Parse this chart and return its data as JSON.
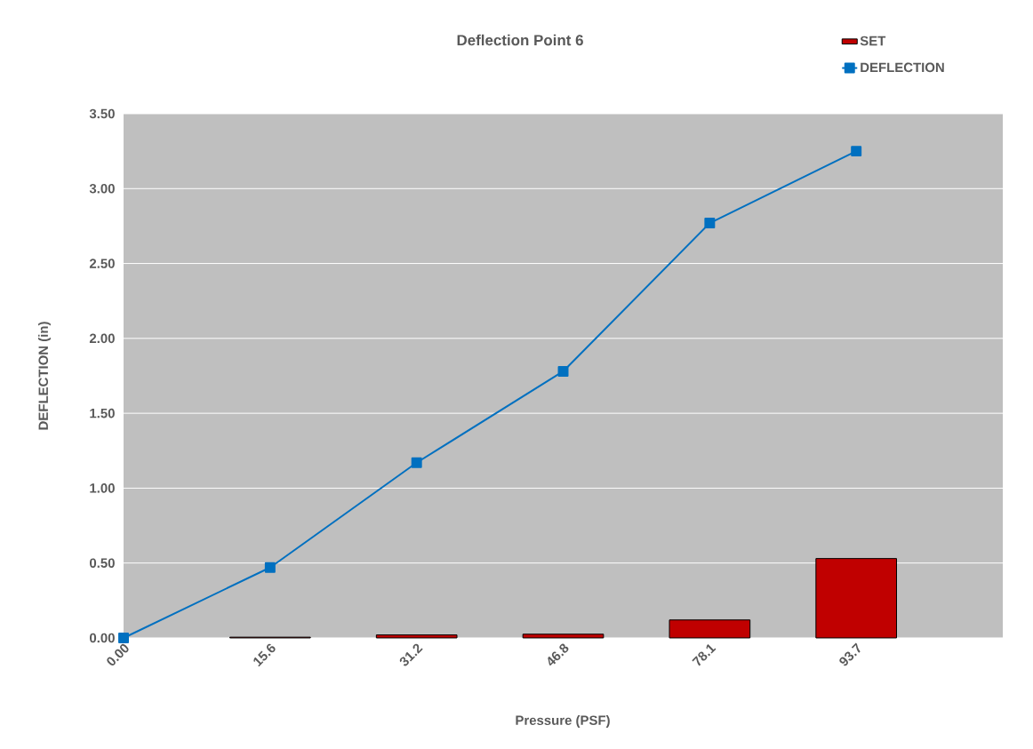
{
  "chart_data": {
    "type": "bar",
    "title": "Deflection Point 6",
    "xlabel": "Pressure (PSF)",
    "ylabel": "DEFLECTION (in)",
    "categories": [
      "0.00",
      "15.6",
      "31.2",
      "46.8",
      "78.1",
      "93.7"
    ],
    "series": [
      {
        "name": "SET",
        "color": "#c00000",
        "values": [
          null,
          0.005,
          0.02,
          0.025,
          0.12,
          0.53
        ]
      },
      {
        "name": "DEFLECTION",
        "type": "line",
        "color": "#0070c0",
        "marker": "square",
        "values": [
          0,
          0.47,
          1.17,
          1.78,
          2.77,
          3.25
        ]
      }
    ],
    "ylim": [
      0,
      3.5
    ],
    "yticks": [
      {
        "value": 0,
        "label": "0.00"
      },
      {
        "value": 0.5,
        "label": "0.50"
      },
      {
        "value": 1,
        "label": "1.00"
      },
      {
        "value": 1.5,
        "label": "1.50"
      },
      {
        "value": 2,
        "label": "2.00"
      },
      {
        "value": 2.5,
        "label": "2.50"
      },
      {
        "value": 3,
        "label": "3.00"
      },
      {
        "value": 3.5,
        "label": "3.50"
      }
    ],
    "grid": "y",
    "legend": "top right"
  }
}
